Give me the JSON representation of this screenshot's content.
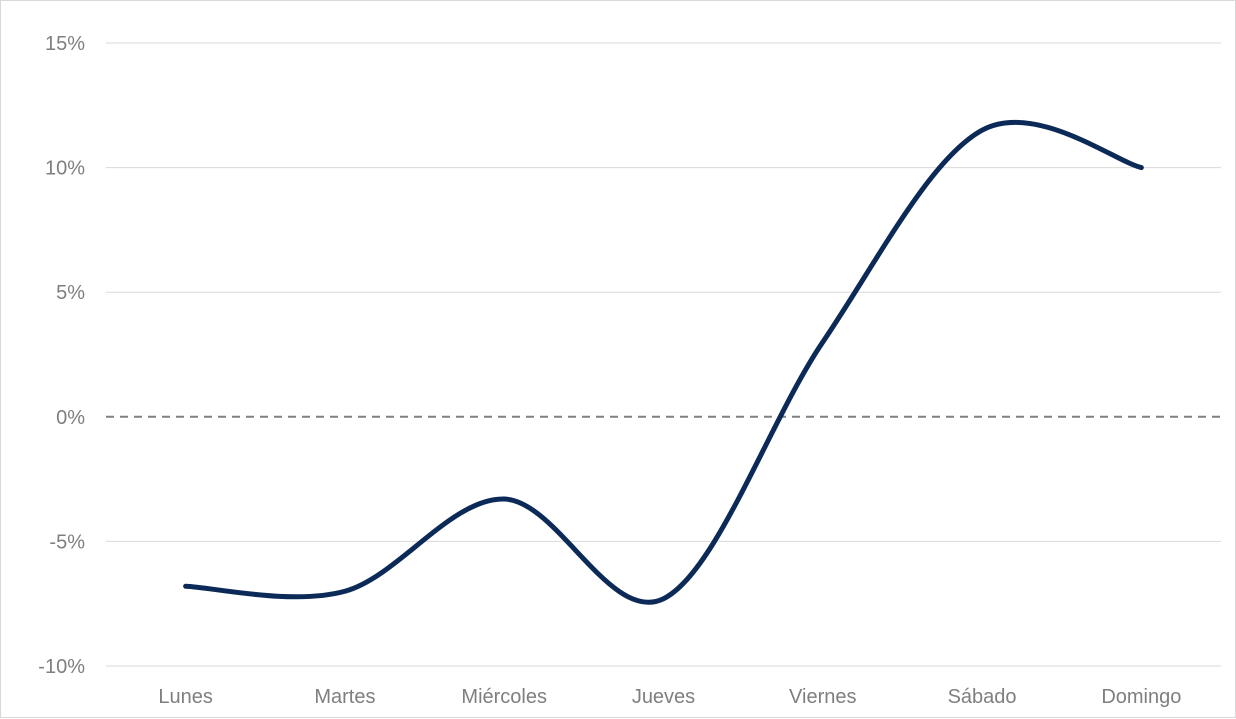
{
  "chart_data": {
    "type": "line",
    "smooth": true,
    "categories": [
      "Lunes",
      "Martes",
      "Miércoles",
      "Jueves",
      "Viernes",
      "Sábado",
      "Domingo"
    ],
    "series": [
      {
        "values": [
          -6.8,
          -7.0,
          -3.3,
          -7.3,
          3.0,
          11.5,
          10.0
        ]
      }
    ],
    "y_ticks": [
      "-10%",
      "-5%",
      "0%",
      "5%",
      "10%",
      "15%"
    ],
    "ylim": [
      -10,
      15
    ],
    "grid": true,
    "reference_line": {
      "value": 0,
      "style": "dashed"
    },
    "colors": {
      "series": "#0c2a57",
      "grid": "#d9d9d9",
      "zero_line": "#808080",
      "labels": "#7f7f7f"
    }
  }
}
